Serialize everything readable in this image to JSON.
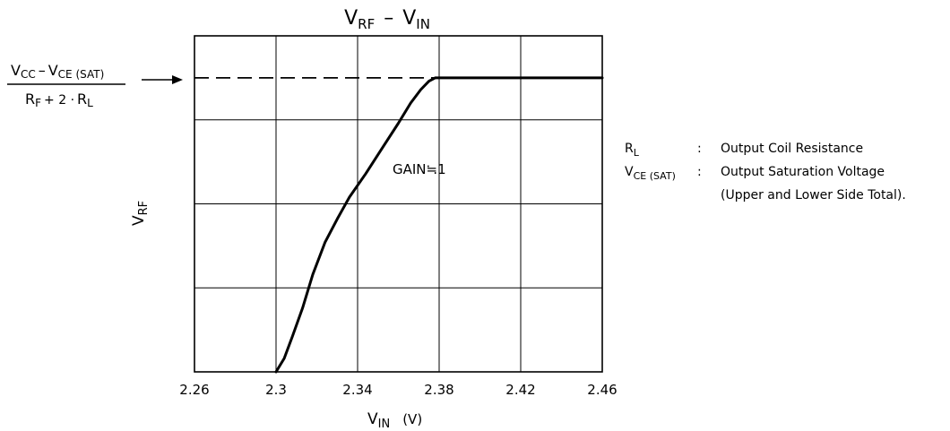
{
  "chart_data": {
    "type": "line",
    "title": {
      "base": "V",
      "sub1": "RF",
      "sep": "–",
      "base2": "V",
      "sub2": "IN"
    },
    "xlabel": {
      "base": "V",
      "sub": "IN",
      "unit": "(V)"
    },
    "ylabel": {
      "base": "V",
      "sub": "RF"
    },
    "xlim": [
      2.26,
      2.46
    ],
    "ylim": [
      0,
      1.0
    ],
    "x_ticks": [
      "2.26",
      "2.3",
      "2.34",
      "2.38",
      "2.42",
      "2.46"
    ],
    "x_tick_values": [
      2.26,
      2.3,
      2.34,
      2.38,
      2.42,
      2.46
    ],
    "y_grid_values": [
      0.25,
      0.5,
      0.75
    ],
    "grid": true,
    "saturation_level": 0.875,
    "series": [
      {
        "x": [
          2.3,
          2.304,
          2.308,
          2.313,
          2.318,
          2.324,
          2.33,
          2.336,
          2.344,
          2.352,
          2.36,
          2.366,
          2.371,
          2.375,
          2.378,
          2.381,
          2.42,
          2.46
        ],
        "y": [
          0.0,
          0.04,
          0.105,
          0.19,
          0.29,
          0.385,
          0.455,
          0.52,
          0.59,
          0.665,
          0.74,
          0.8,
          0.84,
          0.865,
          0.875,
          0.875,
          0.875,
          0.875
        ]
      }
    ],
    "annotations": {
      "gain": "GAIN≒1",
      "fraction": {
        "num_v1": "V",
        "num_s1": "CC",
        "num_minus": "–",
        "num_v2": "V",
        "num_s2": "CE (SAT)",
        "den_r1": "R",
        "den_s1": "F",
        "den_mid": "+ 2 ·",
        "den_r2": "R",
        "den_s2": "L"
      }
    },
    "legend": {
      "rl_base": "R",
      "rl_sub": "L",
      "rl_colon": ":",
      "rl_desc": "Output Coil Resistance",
      "vce_base": "V",
      "vce_sub": "CE (SAT)",
      "vce_colon": ":",
      "vce_desc": "Output Saturation Voltage",
      "vce_desc2": "(Upper and Lower Side Total)."
    }
  }
}
